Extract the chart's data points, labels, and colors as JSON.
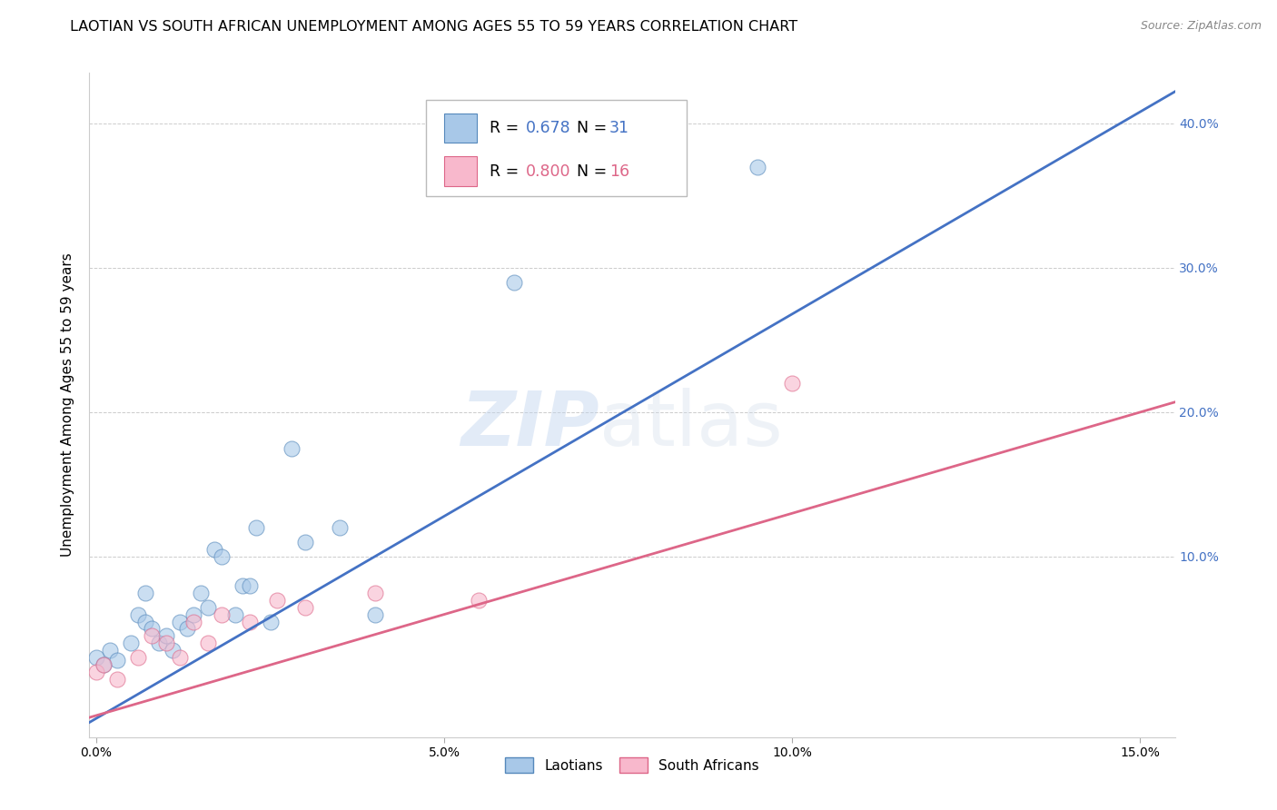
{
  "title": "LAOTIAN VS SOUTH AFRICAN UNEMPLOYMENT AMONG AGES 55 TO 59 YEARS CORRELATION CHART",
  "source": "Source: ZipAtlas.com",
  "ylabel": "Unemployment Among Ages 55 to 59 years",
  "xlim": [
    -0.001,
    0.155
  ],
  "ylim": [
    -0.025,
    0.435
  ],
  "xticks": [
    0.0,
    0.05,
    0.1,
    0.15
  ],
  "xtick_labels": [
    "0.0%",
    "5.0%",
    "10.0%",
    "15.0%"
  ],
  "yticks": [
    0.1,
    0.2,
    0.3,
    0.4
  ],
  "ytick_labels": [
    "10.0%",
    "20.0%",
    "30.0%",
    "40.0%"
  ],
  "laotian_x": [
    0.0,
    0.001,
    0.002,
    0.003,
    0.005,
    0.006,
    0.007,
    0.007,
    0.008,
    0.009,
    0.01,
    0.011,
    0.012,
    0.013,
    0.014,
    0.015,
    0.016,
    0.017,
    0.018,
    0.02,
    0.021,
    0.022,
    0.023,
    0.025,
    0.028,
    0.03,
    0.035,
    0.04,
    0.06,
    0.08,
    0.095
  ],
  "laotian_y": [
    0.03,
    0.025,
    0.035,
    0.028,
    0.04,
    0.06,
    0.055,
    0.075,
    0.05,
    0.04,
    0.045,
    0.035,
    0.055,
    0.05,
    0.06,
    0.075,
    0.065,
    0.105,
    0.1,
    0.06,
    0.08,
    0.08,
    0.12,
    0.055,
    0.175,
    0.11,
    0.12,
    0.06,
    0.29,
    0.365,
    0.37
  ],
  "sa_x": [
    0.0,
    0.001,
    0.003,
    0.006,
    0.008,
    0.01,
    0.012,
    0.014,
    0.016,
    0.018,
    0.022,
    0.026,
    0.03,
    0.04,
    0.055,
    0.1
  ],
  "sa_y": [
    0.02,
    0.025,
    0.015,
    0.03,
    0.045,
    0.04,
    0.03,
    0.055,
    0.04,
    0.06,
    0.055,
    0.07,
    0.065,
    0.075,
    0.07,
    0.22
  ],
  "laotian_color": "#a8c8e8",
  "laotian_edge_color": "#5588bb",
  "sa_color": "#f8b8cc",
  "sa_edge_color": "#dd6688",
  "line_blue": "#4472c4",
  "line_pink": "#dd6688",
  "r_laotian": "0.678",
  "n_laotian": "31",
  "r_sa": "0.800",
  "n_sa": "16",
  "marker_size": 150,
  "alpha": 0.6,
  "watermark_left": "ZIP",
  "watermark_right": "atlas",
  "ytick_color": "#4472c4",
  "title_fontsize": 11.5,
  "label_fontsize": 11,
  "legend_r_color": "#4472c4",
  "legend_n_color": "#4472c4"
}
